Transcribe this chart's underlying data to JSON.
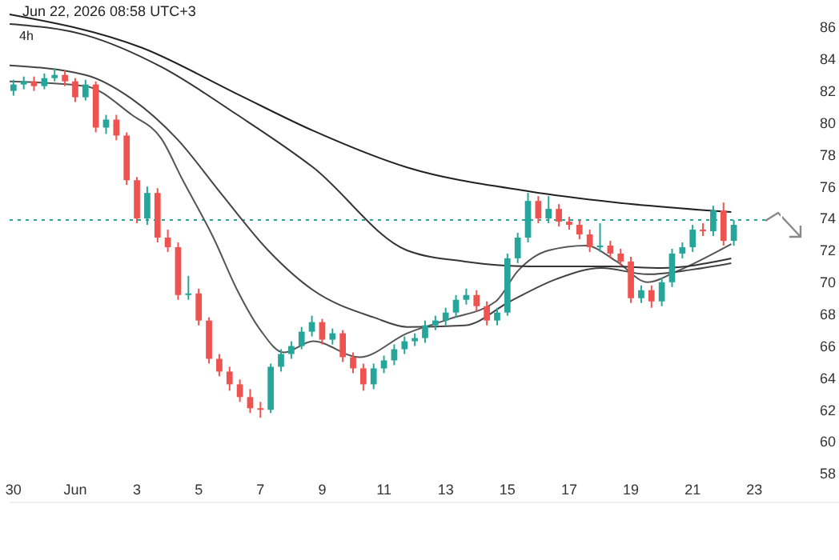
{
  "chart_data": {
    "type": "candlestick",
    "annotations": [
      "Jun 22, 2026 08:58 UTC+3",
      "4h"
    ],
    "xlim": [
      "2026-05-29T21:00",
      "2026-06-23T11:00"
    ],
    "xticks": [
      {
        "value": "2026-05-30",
        "label": "30"
      },
      {
        "value": "2026-06-01",
        "label": "Jun"
      },
      {
        "value": "2026-06-03",
        "label": "3"
      },
      {
        "value": "2026-06-05",
        "label": "5"
      },
      {
        "value": "2026-06-07",
        "label": "7"
      },
      {
        "value": "2026-06-09",
        "label": "9"
      },
      {
        "value": "2026-06-11",
        "label": "11"
      },
      {
        "value": "2026-06-13",
        "label": "13"
      },
      {
        "value": "2026-06-15",
        "label": "15"
      },
      {
        "value": "2026-06-17",
        "label": "17"
      },
      {
        "value": "2026-06-19",
        "label": "19"
      },
      {
        "value": "2026-06-21",
        "label": "21"
      },
      {
        "value": "2026-06-23",
        "label": "23"
      }
    ],
    "ylim": [
      57.6,
      87.7
    ],
    "yticks": [
      58,
      60,
      62,
      64,
      66,
      68,
      70,
      72,
      74,
      76,
      78,
      80,
      82,
      84,
      86
    ],
    "ref_lines": [
      {
        "axis": "y",
        "value": 73.9,
        "color": "#26a69a",
        "line_style": "dotted"
      }
    ],
    "series": [
      {
        "colors": [
          "#26a69a",
          "#26a69a",
          "#ef5350",
          "#26a69a",
          "#26a69a",
          "#ef5350",
          "#ef5350",
          "#26a69a",
          "#ef5350",
          "#26a69a",
          "#ef5350",
          "#ef5350",
          "#ef5350",
          "#26a69a",
          "#ef5350",
          "#ef5350",
          "#ef5350",
          "#26a69a",
          "#ef5350",
          "#ef5350",
          "#ef5350",
          "#ef5350",
          "#ef5350",
          "#ef5350",
          "#ef5350",
          "#26a69a",
          "#26a69a",
          "#26a69a",
          "#26a69a",
          "#26a69a",
          "#ef5350",
          "#26a69a",
          "#ef5350",
          "#ef5350",
          "#ef5350",
          "#26a69a",
          "#26a69a",
          "#26a69a",
          "#26a69a",
          "#26a69a",
          "#26a69a",
          "#26a69a",
          "#26a69a",
          "#26a69a",
          "#26a69a",
          "#ef5350",
          "#ef5350",
          "#26a69a",
          "#26a69a",
          "#26a69a",
          "#26a69a",
          "#ef5350",
          "#26a69a",
          "#ef5350",
          "#ef5350",
          "#ef5350",
          "#ef5350",
          "#26a69a",
          "#ef5350",
          "#ef5350",
          "#ef5350",
          "#26a69a",
          "#ef5350",
          "#26a69a",
          "#26a69a",
          "#26a69a",
          "#26a69a",
          "#ef5350",
          "#26a69a",
          "#ef5350",
          "#26a69a"
        ],
        "x": [
          "2026-05-30T00:00",
          "2026-05-30T08:00",
          "2026-05-30T16:00",
          "2026-05-31T00:00",
          "2026-05-31T08:00",
          "2026-05-31T16:00",
          "2026-06-01T00:00",
          "2026-06-01T08:00",
          "2026-06-01T16:00",
          "2026-06-02T00:00",
          "2026-06-02T08:00",
          "2026-06-02T16:00",
          "2026-06-03T00:00",
          "2026-06-03T08:00",
          "2026-06-03T16:00",
          "2026-06-04T00:00",
          "2026-06-04T08:00",
          "2026-06-04T16:00",
          "2026-06-05T00:00",
          "2026-06-05T08:00",
          "2026-06-05T16:00",
          "2026-06-06T00:00",
          "2026-06-06T08:00",
          "2026-06-06T16:00",
          "2026-06-07T00:00",
          "2026-06-07T08:00",
          "2026-06-07T16:00",
          "2026-06-08T00:00",
          "2026-06-08T08:00",
          "2026-06-08T16:00",
          "2026-06-09T00:00",
          "2026-06-09T08:00",
          "2026-06-09T16:00",
          "2026-06-10T00:00",
          "2026-06-10T08:00",
          "2026-06-10T16:00",
          "2026-06-11T00:00",
          "2026-06-11T08:00",
          "2026-06-11T16:00",
          "2026-06-12T00:00",
          "2026-06-12T08:00",
          "2026-06-12T16:00",
          "2026-06-13T00:00",
          "2026-06-13T08:00",
          "2026-06-13T16:00",
          "2026-06-14T00:00",
          "2026-06-14T08:00",
          "2026-06-14T16:00",
          "2026-06-15T00:00",
          "2026-06-15T08:00",
          "2026-06-15T16:00",
          "2026-06-16T00:00",
          "2026-06-16T08:00",
          "2026-06-16T16:00",
          "2026-06-17T00:00",
          "2026-06-17T08:00",
          "2026-06-17T16:00",
          "2026-06-18T00:00",
          "2026-06-18T08:00",
          "2026-06-18T16:00",
          "2026-06-19T00:00",
          "2026-06-19T08:00",
          "2026-06-19T16:00",
          "2026-06-20T00:00",
          "2026-06-20T08:00",
          "2026-06-20T16:00",
          "2026-06-21T00:00",
          "2026-06-21T08:00",
          "2026-06-21T16:00",
          "2026-06-22T00:00",
          "2026-06-22T08:00"
        ],
        "ohlc": [
          [
            82.0,
            82.7,
            81.7,
            82.4
          ],
          [
            82.4,
            82.9,
            82.1,
            82.6
          ],
          [
            82.6,
            82.9,
            82.0,
            82.3
          ],
          [
            82.3,
            83.1,
            82.1,
            82.8
          ],
          [
            82.8,
            83.4,
            82.6,
            83.0
          ],
          [
            83.0,
            83.3,
            82.3,
            82.6
          ],
          [
            82.6,
            82.8,
            81.3,
            81.6
          ],
          [
            81.6,
            82.7,
            81.4,
            82.4
          ],
          [
            82.4,
            82.6,
            79.4,
            79.7
          ],
          [
            79.7,
            80.5,
            79.3,
            80.2
          ],
          [
            80.2,
            80.5,
            78.9,
            79.2
          ],
          [
            79.2,
            79.4,
            76.1,
            76.4
          ],
          [
            76.4,
            76.6,
            73.7,
            74.0
          ],
          [
            74.0,
            76.0,
            73.6,
            75.6
          ],
          [
            75.6,
            75.9,
            72.5,
            72.8
          ],
          [
            72.8,
            73.3,
            71.9,
            72.2
          ],
          [
            72.2,
            72.5,
            68.9,
            69.2
          ],
          [
            69.2,
            70.4,
            68.9,
            69.3
          ],
          [
            69.3,
            69.6,
            67.3,
            67.6
          ],
          [
            67.6,
            67.8,
            64.9,
            65.2
          ],
          [
            65.2,
            65.5,
            64.1,
            64.4
          ],
          [
            64.4,
            64.7,
            63.2,
            63.6
          ],
          [
            63.6,
            63.9,
            62.5,
            62.8
          ],
          [
            62.8,
            63.3,
            61.8,
            62.1
          ],
          [
            62.1,
            62.5,
            61.5,
            62.0
          ],
          [
            62.0,
            64.9,
            61.8,
            64.7
          ],
          [
            64.7,
            65.8,
            64.4,
            65.5
          ],
          [
            65.5,
            66.3,
            65.2,
            66.0
          ],
          [
            66.0,
            67.2,
            65.8,
            66.9
          ],
          [
            66.9,
            67.9,
            66.6,
            67.5
          ],
          [
            67.5,
            67.7,
            66.1,
            66.4
          ],
          [
            66.4,
            67.1,
            66.1,
            66.8
          ],
          [
            66.8,
            67.0,
            65.0,
            65.3
          ],
          [
            65.3,
            65.6,
            64.3,
            64.6
          ],
          [
            64.6,
            64.9,
            63.2,
            63.6
          ],
          [
            63.6,
            64.9,
            63.3,
            64.6
          ],
          [
            64.6,
            65.4,
            64.3,
            65.1
          ],
          [
            65.1,
            66.1,
            64.8,
            65.8
          ],
          [
            65.8,
            66.6,
            65.5,
            66.3
          ],
          [
            66.3,
            66.8,
            66.0,
            66.5
          ],
          [
            66.5,
            67.6,
            66.2,
            67.3
          ],
          [
            67.3,
            67.9,
            67.0,
            67.6
          ],
          [
            67.6,
            68.4,
            67.3,
            68.1
          ],
          [
            68.1,
            69.2,
            67.8,
            68.9
          ],
          [
            68.9,
            69.6,
            68.6,
            69.2
          ],
          [
            69.2,
            69.5,
            68.2,
            68.5
          ],
          [
            68.5,
            68.8,
            67.3,
            67.6
          ],
          [
            67.6,
            68.4,
            67.3,
            68.1
          ],
          [
            68.1,
            71.8,
            67.9,
            71.5
          ],
          [
            71.5,
            73.1,
            71.2,
            72.8
          ],
          [
            72.8,
            75.6,
            72.5,
            75.1
          ],
          [
            75.1,
            75.4,
            73.7,
            74.0
          ],
          [
            74.0,
            75.4,
            73.7,
            74.6
          ],
          [
            74.6,
            74.9,
            73.5,
            73.8
          ],
          [
            73.8,
            74.1,
            73.3,
            73.6
          ],
          [
            73.6,
            73.9,
            72.7,
            73.0
          ],
          [
            73.0,
            73.3,
            71.9,
            72.2
          ],
          [
            72.2,
            73.7,
            71.9,
            72.3
          ],
          [
            72.3,
            72.6,
            71.5,
            71.8
          ],
          [
            71.8,
            72.1,
            71.0,
            71.3
          ],
          [
            71.3,
            71.6,
            68.7,
            69.0
          ],
          [
            69.0,
            69.8,
            68.7,
            69.5
          ],
          [
            69.5,
            69.8,
            68.4,
            68.8
          ],
          [
            68.8,
            70.3,
            68.5,
            70.0
          ],
          [
            70.0,
            72.1,
            69.7,
            71.8
          ],
          [
            71.8,
            72.5,
            71.5,
            72.2
          ],
          [
            72.2,
            73.6,
            71.9,
            73.3
          ],
          [
            73.3,
            73.7,
            72.9,
            73.2
          ],
          [
            73.2,
            74.8,
            72.9,
            74.5
          ],
          [
            74.5,
            75.0,
            72.3,
            72.6
          ],
          [
            72.6,
            73.9,
            72.3,
            73.6
          ]
        ]
      },
      {
        "type": "line",
        "color": "#555555",
        "x": [
          "2026-05-29T21:00",
          "2026-06-01T08:00",
          "2026-06-02T20:00",
          "2026-06-03T19:00",
          "2026-06-04T11:00",
          "2026-06-05T12:00",
          "2026-06-06T06:00",
          "2026-06-07T00:00",
          "2026-06-07T18:00",
          "2026-06-08T17:00",
          "2026-06-10T05:00",
          "2026-06-11T18:00",
          "2026-06-13T03:00",
          "2026-06-14T15:00",
          "2026-06-15T08:00",
          "2026-06-16T08:00",
          "2026-06-17T13:00",
          "2026-06-18T13:00",
          "2026-06-19T13:00",
          "2026-06-20T12:00",
          "2026-06-22T06:00"
        ],
        "values": [
          82.6,
          82.3,
          80.5,
          79.0,
          76.5,
          72.7,
          69.5,
          67.0,
          65.6,
          66.3,
          65.3,
          66.8,
          67.7,
          68.8,
          70.7,
          72.0,
          72.3,
          71.3,
          70.0,
          70.7,
          72.4
        ]
      },
      {
        "type": "line",
        "color": "#444444",
        "x": [
          "2026-05-29T21:00",
          "2026-06-01T08:00",
          "2026-06-02T20:00",
          "2026-06-04T07:00",
          "2026-06-05T18:00",
          "2026-06-07T06:00",
          "2026-06-08T17:00",
          "2026-06-10T16:00",
          "2026-06-11T18:00",
          "2026-06-13T15:00",
          "2026-06-15T02:00",
          "2026-06-16T14:00",
          "2026-06-18T01:00",
          "2026-06-19T13:00",
          "2026-06-21T00:00",
          "2026-06-22T06:00"
        ],
        "values": [
          83.6,
          83.0,
          81.5,
          79.0,
          75.5,
          72.0,
          69.5,
          67.8,
          67.2,
          67.3,
          68.8,
          70.2,
          70.9,
          70.5,
          70.8,
          71.2
        ]
      },
      {
        "type": "line",
        "color": "#333333",
        "x": [
          "2026-05-29T21:00",
          "2026-06-01T08:00",
          "2026-06-03T19:00",
          "2026-06-06T06:00",
          "2026-06-08T17:00",
          "2026-06-11T18:00",
          "2026-06-13T15:00",
          "2026-06-15T17:00",
          "2026-06-18T07:00",
          "2026-06-20T00:00",
          "2026-06-22T06:00"
        ],
        "values": [
          86.2,
          85.5,
          83.5,
          80.5,
          77.2,
          72.0,
          71.3,
          71.0,
          71.0,
          70.9,
          71.5
        ]
      },
      {
        "type": "line",
        "color": "#222222",
        "x": [
          "2026-05-29T21:00",
          "2026-06-03T04:00",
          "2026-06-06T06:00",
          "2026-06-08T17:00",
          "2026-06-11T18:00",
          "2026-06-15T17:00",
          "2026-06-18T13:00",
          "2026-06-22T06:00"
        ],
        "values": [
          86.8,
          84.7,
          81.8,
          79.5,
          77.2,
          75.7,
          75.0,
          74.4
        ]
      }
    ]
  }
}
